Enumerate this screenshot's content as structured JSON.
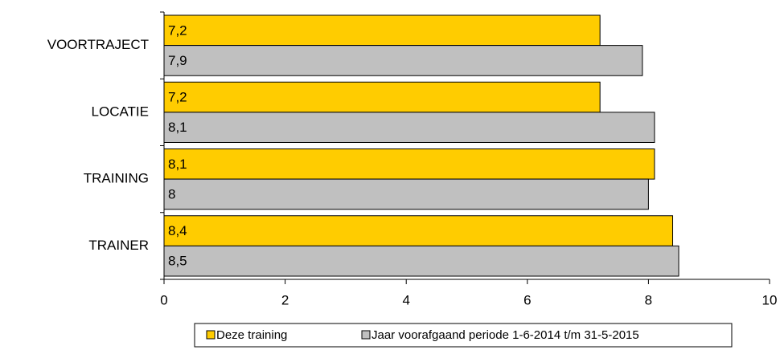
{
  "chart_data": {
    "type": "bar",
    "orientation": "horizontal",
    "categories": [
      "VOORTRAJECT",
      "LOCATIE",
      "TRAINING",
      "TRAINER"
    ],
    "series": [
      {
        "name": "Deze training",
        "color": "#ffcc00",
        "values": [
          7.2,
          7.2,
          8.1,
          8.4
        ],
        "value_labels": [
          "7,2",
          "7,2",
          "8,1",
          "8,4"
        ]
      },
      {
        "name": "Jaar voorafgaand periode 1-6-2014 t/m 31-5-2015",
        "color": "#c0c0c0",
        "values": [
          7.9,
          8.1,
          8,
          8.5
        ],
        "value_labels": [
          "7,9",
          "8,1",
          "8",
          "8,5"
        ]
      }
    ],
    "xlim": [
      0,
      10
    ],
    "xticks": [
      0,
      2,
      4,
      6,
      8,
      10
    ],
    "legend": "bottom"
  }
}
